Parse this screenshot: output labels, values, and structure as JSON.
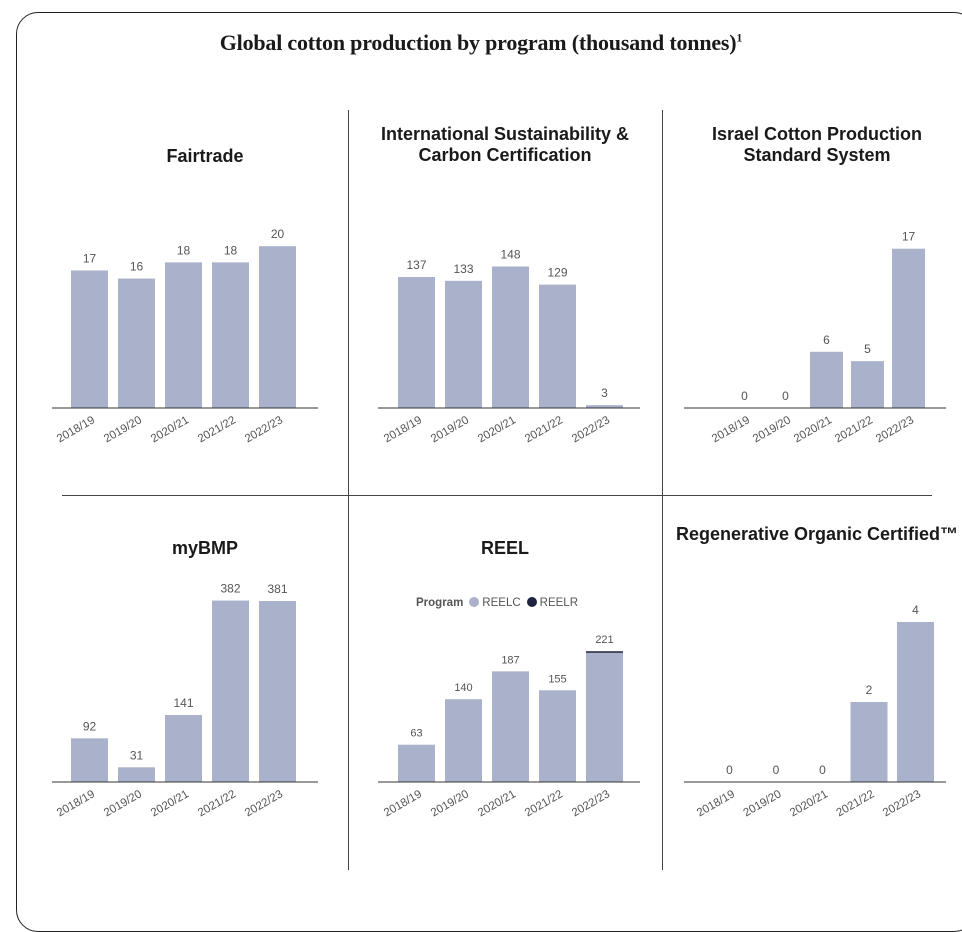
{
  "title": "Global cotton production by program (thousand tonnes)",
  "title_footnote": "1",
  "colors": {
    "bar": "#aab1cb",
    "reelr": "#1f2440",
    "axis": "#333333",
    "text": "#555555"
  },
  "chart_data": [
    {
      "type": "bar",
      "title": "Fairtrade",
      "categories": [
        "2018/19",
        "2019/20",
        "2020/21",
        "2021/22",
        "2022/23"
      ],
      "values": [
        17,
        16,
        18,
        18,
        20
      ],
      "ylim": [
        0,
        22
      ]
    },
    {
      "type": "bar",
      "title": "International Sustainability & Carbon Certification",
      "categories": [
        "2018/19",
        "2019/20",
        "2020/21",
        "2021/22",
        "2022/23"
      ],
      "values": [
        137,
        133,
        148,
        129,
        3
      ],
      "ylim": [
        0,
        160
      ]
    },
    {
      "type": "bar",
      "title": "Israel Cotton Production Standard System",
      "categories": [
        "2018/19",
        "2019/20",
        "2020/21",
        "2021/22",
        "2022/23"
      ],
      "values": [
        0,
        0,
        6,
        5,
        17
      ],
      "ylim": [
        0,
        19
      ]
    },
    {
      "type": "bar",
      "title": "myBMP",
      "categories": [
        "2018/19",
        "2019/20",
        "2020/21",
        "2021/22",
        "2022/23"
      ],
      "values": [
        92,
        31,
        141,
        382,
        381
      ],
      "ylim": [
        0,
        400
      ]
    },
    {
      "type": "bar",
      "title": "REEL",
      "categories": [
        "2018/19",
        "2019/20",
        "2020/21",
        "2021/22",
        "2022/23"
      ],
      "legend": {
        "title": "Program",
        "items": [
          "REELC",
          "REELR"
        ]
      },
      "series": [
        {
          "name": "REELC",
          "values": [
            63,
            140,
            187,
            155,
            219
          ]
        },
        {
          "name": "REELR",
          "values": [
            0,
            0,
            0,
            0,
            2
          ]
        }
      ],
      "totals": [
        63,
        140,
        187,
        155,
        221
      ],
      "ylim": [
        0,
        240
      ]
    },
    {
      "type": "bar",
      "title": "Regenerative Organic Certified™",
      "categories": [
        "2018/19",
        "2019/20",
        "2020/21",
        "2021/22",
        "2022/23"
      ],
      "values": [
        0,
        0,
        0,
        2,
        4
      ],
      "ylim": [
        0,
        4.6
      ]
    }
  ]
}
